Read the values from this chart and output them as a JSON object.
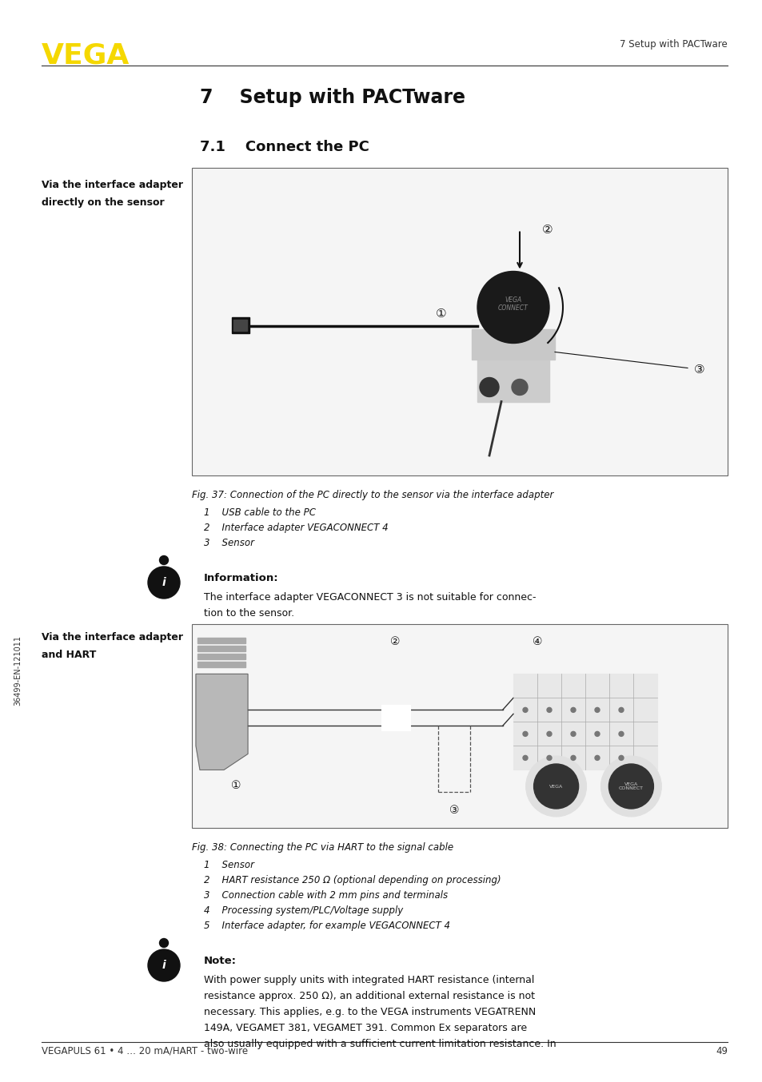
{
  "page_background": "#ffffff",
  "vega_logo_color": "#f5d800",
  "header_right_text": "7 Setup with PACTware",
  "footer_left_text": "VEGAPULS 61 • 4 … 20 mA/HART - two-wire",
  "footer_right_text": "49",
  "sidebar_text": "36499-EN-121011",
  "chapter_title": "7    Setup with PACTware",
  "section_title": "7.1    Connect the PC",
  "left_label_1_line1": "Via the interface adapter",
  "left_label_1_line2": "directly on the sensor",
  "left_label_2_line1": "Via the interface adapter",
  "left_label_2_line2": "and HART",
  "fig37_caption": "Fig. 37: Connection of the PC directly to the sensor via the interface adapter",
  "fig37_items": [
    "1    USB cable to the PC",
    "2    Interface adapter VEGACONNECT 4",
    "3    Sensor"
  ],
  "info_title": "Information:",
  "info_text_line1": "The interface adapter VEGACONNECT 3 is not suitable for connec-",
  "info_text_line2": "tion to the sensor.",
  "fig38_caption": "Fig. 38: Connecting the PC via HART to the signal cable",
  "fig38_items": [
    "1    Sensor",
    "2    HART resistance 250 Ω (optional depending on processing)",
    "3    Connection cable with 2 mm pins and terminals",
    "4    Processing system/PLC/Voltage supply",
    "5    Interface adapter, for example VEGACONNECT 4"
  ],
  "note_title": "Note:",
  "note_text_lines": [
    "With power supply units with integrated HART resistance (internal",
    "resistance approx. 250 Ω), an additional external resistance is not",
    "necessary. This applies, e.g. to the VEGA instruments VEGATRENN",
    "149A, VEGAMET 381, VEGAMET 391. Common Ex separators are",
    "also usually equipped with a sufficient current limitation resistance. In"
  ]
}
